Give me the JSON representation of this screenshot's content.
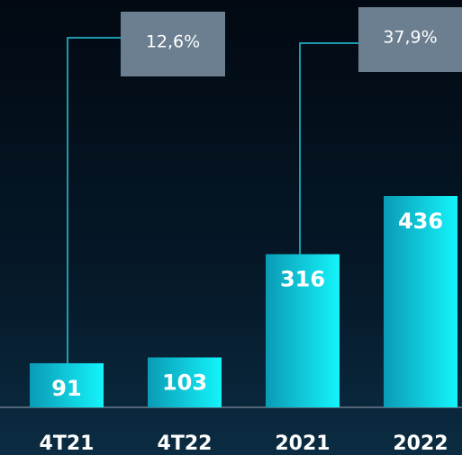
{
  "chart_data": {
    "type": "bar",
    "categories": [
      "4T21",
      "4T22",
      "2021",
      "2022"
    ],
    "values": [
      91,
      103,
      316,
      436
    ],
    "color": "#10e6f2",
    "annotations": [
      "12,6%",
      "37,9%"
    ]
  }
}
